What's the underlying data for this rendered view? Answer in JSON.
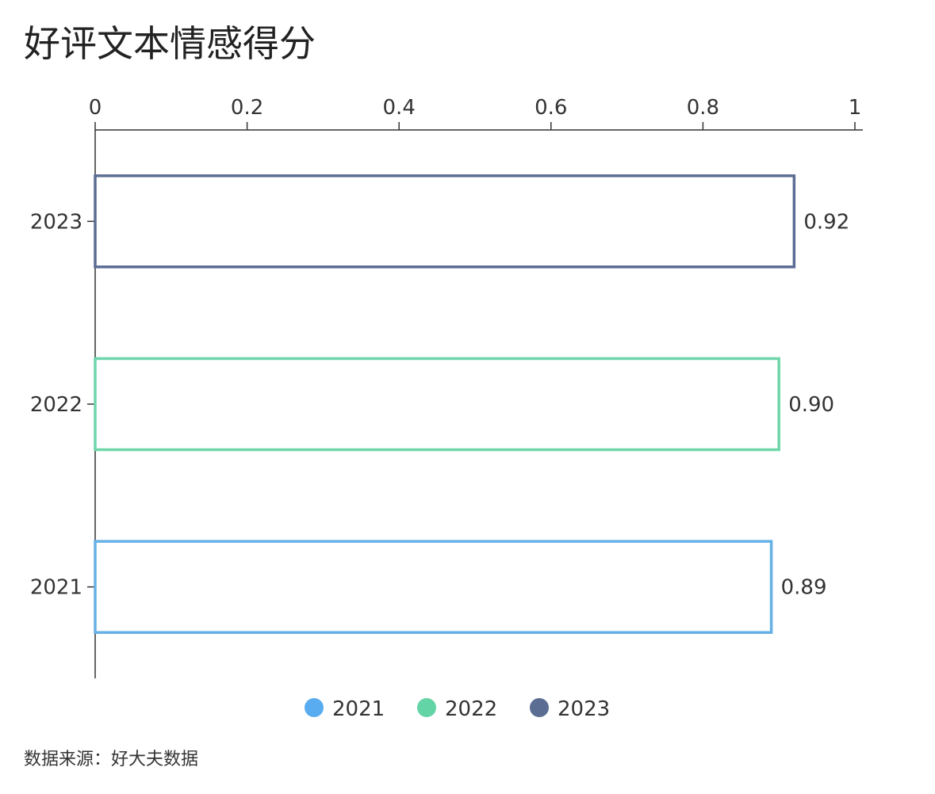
{
  "chart_data": {
    "type": "bar",
    "orientation": "horizontal",
    "title": "好评文本情感得分",
    "categories": [
      "2023",
      "2022",
      "2021"
    ],
    "values": [
      0.92,
      0.9,
      0.89
    ],
    "value_labels": [
      "0.92",
      "0.90",
      "0.89"
    ],
    "colors": [
      "#5b6d93",
      "#6dd6aa",
      "#66b0e6"
    ],
    "bar_style": "outline",
    "xlim": [
      0,
      1
    ],
    "x_ticks": [
      {
        "value": 0,
        "label": "0"
      },
      {
        "value": 0.2,
        "label": "0.2"
      },
      {
        "value": 0.4,
        "label": "0.4"
      },
      {
        "value": 0.6,
        "label": "0.6"
      },
      {
        "value": 0.8,
        "label": "0.8"
      },
      {
        "value": 1,
        "label": "1"
      }
    ],
    "x_axis_position": "top",
    "grid": false,
    "legend": {
      "placement": "bottom-center",
      "items": [
        {
          "label": "2021",
          "color": "#5aacf0"
        },
        {
          "label": "2022",
          "color": "#63d4a6"
        },
        {
          "label": "2023",
          "color": "#5b6d93"
        }
      ]
    }
  },
  "source_note": "数据来源：好大夫数据"
}
